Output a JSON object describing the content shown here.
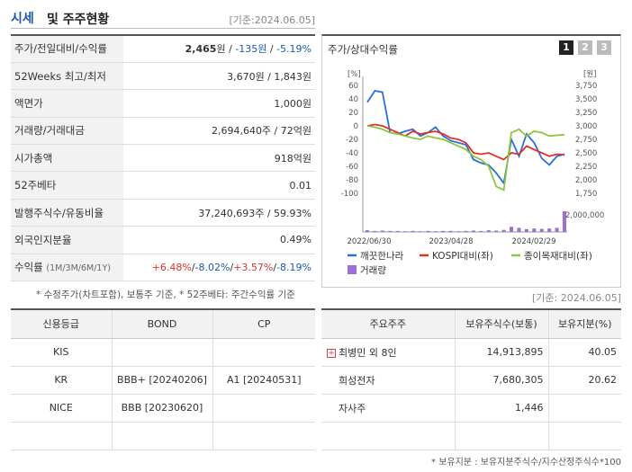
{
  "header": {
    "title_main": "시세",
    "title_rest": "및 주주현황",
    "date": "[기준:2024.06.05]"
  },
  "price_info": [
    {
      "label": "주가/전일대비/수익률",
      "value_price": "2,465",
      "value_change": "-135원",
      "value_rate": "-5.19%"
    },
    {
      "label": "52Weeks 최고/최저",
      "value": "3,670원 / 1,843원"
    },
    {
      "label": "액면가",
      "value": "1,000원"
    },
    {
      "label": "거래량/거래대금",
      "value": "2,694,640주 / 72억원"
    },
    {
      "label": "시가총액",
      "value": "918억원"
    },
    {
      "label": "52주베타",
      "value": "0.01"
    },
    {
      "label": "발행주식수/유동비율",
      "value": "37,240,693주 / 59.93%"
    },
    {
      "label": "외국인지분율",
      "value": "0.49%"
    },
    {
      "label": "수익률",
      "label_sub": "(1M/3M/6M/1Y)",
      "r1": "+6.48%",
      "r2": "-8.02%",
      "r3": "+3.57%",
      "r4": "-8.19%"
    }
  ],
  "won_unit": "원",
  "note_price": "* 수정주가(차트포함), 보통주 기준, * 52주베타: 주간수익률 기준",
  "chart_panel": {
    "title": "주가/상대수익률",
    "tabs": [
      "1",
      "2",
      "3"
    ]
  },
  "chart_data": {
    "type": "line",
    "x_labels": [
      "2022/06/30",
      "2023/04/28",
      "2024/02/29"
    ],
    "left_unit": "[%]",
    "right_unit": "[원]",
    "left_ticks": [
      60,
      40,
      20,
      0,
      -20,
      -40,
      -60,
      -80,
      -100
    ],
    "right_ticks": [
      "3,750",
      "3,500",
      "3,250",
      "3,000",
      "2,750",
      "2,500",
      "2,250",
      "2,000",
      "1,750"
    ],
    "volume_tick": "2,000,000",
    "ylim_left": [
      -100,
      60
    ],
    "series": [
      {
        "name": "깨끗한나라",
        "color": "#2a6fd6",
        "values": [
          35,
          52,
          50,
          -10,
          -12,
          -8,
          -5,
          -15,
          -10,
          -2,
          -15,
          -22,
          -25,
          -28,
          -50,
          -55,
          -58,
          -70,
          -85,
          -20,
          -45,
          -12,
          -25,
          -48,
          -58,
          -45,
          -42
        ]
      },
      {
        "name": "KOSPI대비(좌)",
        "color": "#e0302a",
        "values": [
          0,
          2,
          0,
          -5,
          -10,
          -15,
          -8,
          -12,
          -10,
          -8,
          -12,
          -18,
          -20,
          -25,
          -40,
          -42,
          -40,
          -45,
          -50,
          -40,
          -42,
          -30,
          -35,
          -40,
          -45,
          -42,
          -43
        ]
      },
      {
        "name": "종이목재대비(좌)",
        "color": "#8dc63f",
        "values": [
          0,
          -2,
          -5,
          -10,
          -12,
          -15,
          -18,
          -20,
          -15,
          -18,
          -20,
          -25,
          -30,
          -35,
          -45,
          -50,
          -60,
          -90,
          -95,
          -10,
          -5,
          -15,
          -8,
          -10,
          -15,
          -14,
          -13
        ]
      },
      {
        "name": "거래량",
        "color": "#9b6fd6",
        "values": [
          0.05,
          0.03,
          0.04,
          0.03,
          0.03,
          0.02,
          0.03,
          0.02,
          0.03,
          0.02,
          0.03,
          0.03,
          0.02,
          0.03,
          0.04,
          0.03,
          0.05,
          0.04,
          0.06,
          0.15,
          0.12,
          0.08,
          0.1,
          0.09,
          0.1,
          0.12,
          0.6
        ]
      }
    ]
  },
  "date2": "[기준: 2024.06.05]",
  "credit": {
    "headers": [
      "신용등급",
      "BOND",
      "CP"
    ],
    "rows": [
      [
        "KIS",
        "",
        ""
      ],
      [
        "KR",
        "BBB+ [20240206]",
        "A1 [20240531]"
      ],
      [
        "NICE",
        "BBB [20230620]",
        ""
      ],
      [
        "",
        "",
        ""
      ]
    ]
  },
  "holders": {
    "headers": [
      "주요주주",
      "보유주식수(보통)",
      "보유지분(%)"
    ],
    "rows": [
      [
        "최병민 외 8인",
        "14,913,895",
        "40.05"
      ],
      [
        "희성전자",
        "7,680,305",
        "20.62"
      ],
      [
        "자사주",
        "1,446",
        ""
      ],
      [
        "",
        "",
        ""
      ]
    ]
  },
  "note_holders": "* 보유지분 : 보유지분주식수/지수산정주식수*100"
}
